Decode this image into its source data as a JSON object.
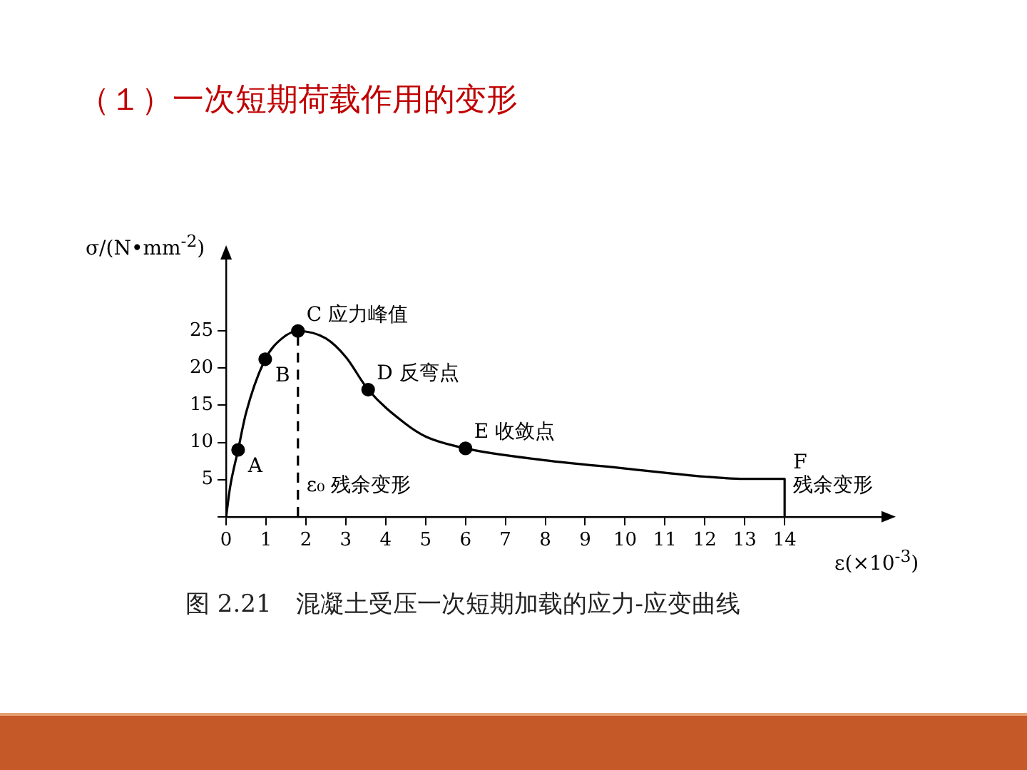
{
  "chart_data": {
    "type": "line",
    "title": "（１）一次短期荷载作用的变形",
    "xlabel": "ε(×10$^{-3}$)",
    "ylabel": "σ/(N•mm$^{-2}$)",
    "xlim": [
      0,
      16.5
    ],
    "ylim": [
      0,
      35
    ],
    "xticks": [
      0,
      1,
      2,
      3,
      4,
      5,
      6,
      7,
      8,
      9,
      10,
      11,
      12,
      13,
      14
    ],
    "yticks": [
      {
        "value": 0,
        "label": null
      },
      5,
      10,
      15,
      20,
      25
    ],
    "grid": false,
    "legend": false,
    "series": [
      {
        "color": "#000000",
        "marker": "none",
        "line_style": "solid",
        "x": [
          0,
          0.1,
          0.3,
          0.5,
          0.98,
          1.4,
          1.8,
          2.5,
          3,
          3.56,
          4.5,
          5,
          6,
          8,
          10,
          12,
          13,
          14,
          14
        ],
        "values": [
          0,
          4,
          9,
          14,
          21.2,
          24,
          25,
          24,
          21.5,
          17.1,
          12.5,
          10.8,
          9.2,
          7.6,
          6.5,
          5.4,
          5.1,
          5.1,
          0
        ]
      },
      {
        "color": "#000000",
        "marker": "none",
        "line_style": "dashed",
        "x": [
          1.8,
          1.8
        ],
        "values": [
          0,
          25
        ]
      },
      {
        "type": "scatter",
        "color": "#000000",
        "marker": "circle",
        "x": [
          0.3,
          0.98,
          1.8,
          3.56,
          6.0
        ],
        "values": [
          9,
          21.2,
          25,
          17.1,
          9.2
        ]
      }
    ],
    "annotations": [
      {
        "text": "A",
        "x": 0.3,
        "y": 9
      },
      {
        "text": "B",
        "x": 0.98,
        "y": 21.2
      },
      {
        "text": "C 应力峰值",
        "x": 1.8,
        "y": 25
      },
      {
        "text": "D 反弯点",
        "x": 3.56,
        "y": 17.1
      },
      {
        "text": "E 收敛点",
        "x": 6.0,
        "y": 9.2
      },
      {
        "text": "F",
        "x": 14,
        "y": 5.1
      },
      {
        "text": "ε₀ 残余变形",
        "x": 1.8,
        "y": 2
      },
      {
        "text": "残余变形",
        "x": 14,
        "y": 2
      },
      "图 2.21　混凝土受压一次短期加载的应力-应变曲线"
    ]
  }
}
